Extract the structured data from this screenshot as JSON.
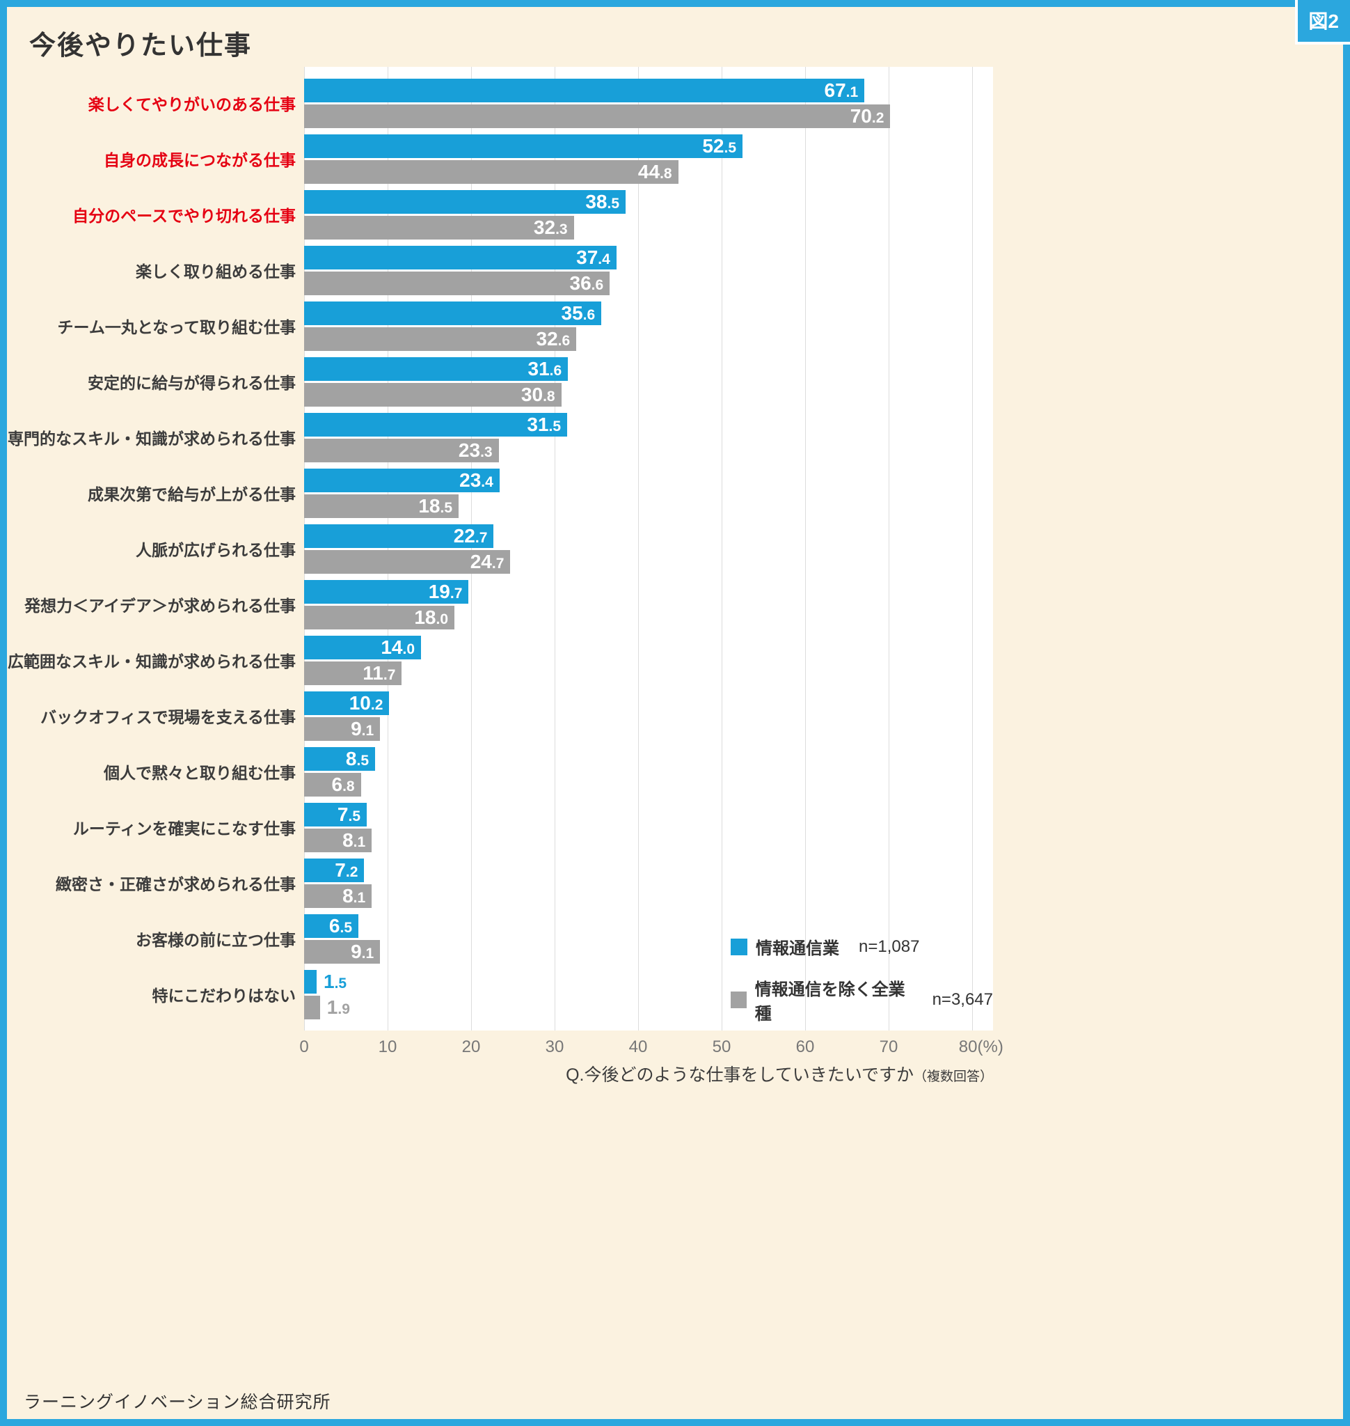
{
  "badge": "図2",
  "title": "今後やりたい仕事",
  "legend": {
    "items": [
      {
        "label": "情報通信業",
        "n": "n=1,087",
        "color": "#189FD8"
      },
      {
        "label": "情報通信を除く全業種",
        "n": "n=3,647",
        "color": "#A2A2A2"
      }
    ]
  },
  "axis": {
    "ticks": [
      "0",
      "10",
      "20",
      "30",
      "40",
      "50",
      "60",
      "70",
      "80(%)"
    ]
  },
  "question": {
    "text": "Q.今後どのような仕事をしていきたいですか",
    "note": "（複数回答）"
  },
  "footer": "ラーニングイノベーション総合研究所",
  "colors": {
    "bar_blue": "#189FD8",
    "bar_gray": "#A2A2A2",
    "highlight_red": "#E50012",
    "frame_blue": "#2BA7DE",
    "background_cream": "#FBF2E0",
    "plot_white": "#FFFFFF"
  },
  "chart_data": {
    "type": "bar",
    "orientation": "horizontal",
    "title": "今後やりたい仕事",
    "categories": [
      "楽しくてやりがいのある仕事",
      "自身の成長につながる仕事",
      "自分のペースでやり切れる仕事",
      "楽しく取り組める仕事",
      "チーム一丸となって取り組む仕事",
      "安定的に給与が得られる仕事",
      "専門的なスキル・知識が求められる仕事",
      "成果次第で給与が上がる仕事",
      "人脈が広げられる仕事",
      "発想力＜アイデア＞が求められる仕事",
      "広範囲なスキル・知識が求められる仕事",
      "バックオフィスで現場を支える仕事",
      "個人で黙々と取り組む仕事",
      "ルーティンを確実にこなす仕事",
      "緻密さ・正確さが求められる仕事",
      "お客様の前に立つ仕事",
      "特にこだわりはない"
    ],
    "highlighted_category_indexes": [
      0,
      1,
      2
    ],
    "series": [
      {
        "name": "情報通信業",
        "n": "n=1,087",
        "color": "#189FD8",
        "values": [
          67.1,
          52.5,
          38.5,
          37.4,
          35.6,
          31.6,
          31.5,
          23.4,
          22.7,
          19.7,
          14.0,
          10.2,
          8.5,
          7.5,
          7.2,
          6.5,
          1.5
        ]
      },
      {
        "name": "情報通信を除く全業種",
        "n": "n=3,647",
        "color": "#A2A2A2",
        "values": [
          70.2,
          44.8,
          32.3,
          36.6,
          32.6,
          30.8,
          23.3,
          18.5,
          24.7,
          18.0,
          11.7,
          9.1,
          6.8,
          8.1,
          8.1,
          9.1,
          1.9
        ]
      }
    ],
    "xlim": [
      0,
      80
    ],
    "x_ticks": [
      0,
      10,
      20,
      30,
      40,
      50,
      60,
      70,
      80
    ],
    "unit": "%",
    "value_labels": true,
    "grid": true,
    "legend_position": "bottom-right-inside"
  }
}
